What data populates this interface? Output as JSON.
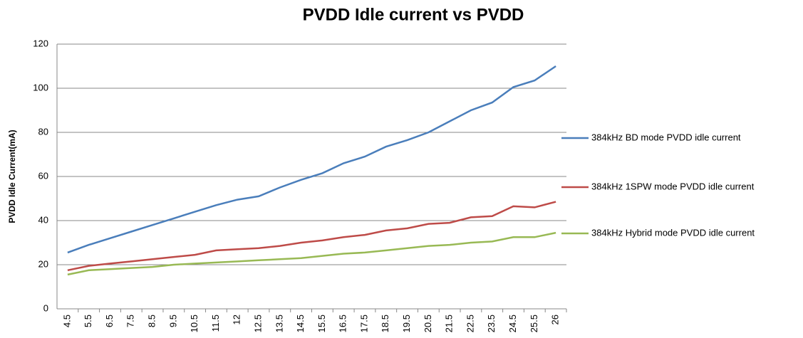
{
  "chart_data": {
    "type": "line",
    "title": "PVDD Idle current vs PVDD",
    "y_label": "PVDD Idle Current(mA)",
    "categories": [
      "4.5",
      "5.5",
      "6.5",
      "7.5",
      "8.5",
      "9.5",
      "10.5",
      "11.5",
      "12",
      "12.5",
      "13.5",
      "14.5",
      "15.5",
      "16.5",
      "17.5",
      "18.5",
      "19.5",
      "20.5",
      "21.5",
      "22.5",
      "23.5",
      "24.5",
      "25.5",
      "26"
    ],
    "series": [
      {
        "name": "384kHz BD mode PVDD idle current",
        "color": "#4a7ebb",
        "values": [
          25.5,
          29,
          32,
          35,
          38,
          41,
          44,
          47,
          49.5,
          51,
          55,
          58.5,
          61.5,
          66,
          69,
          73.5,
          76.5,
          80,
          85,
          90,
          93.5,
          100.5,
          103.5,
          110
        ]
      },
      {
        "name": "384kHz 1SPW mode PVDD idle current",
        "color": "#be4b48",
        "values": [
          17.5,
          19.5,
          20.5,
          21.5,
          22.5,
          23.5,
          24.5,
          26.5,
          27,
          27.5,
          28.5,
          30,
          31,
          32.5,
          33.5,
          35.5,
          36.5,
          38.5,
          39,
          41.5,
          42,
          46.5,
          46,
          48.5
        ]
      },
      {
        "name": "384kHz Hybrid mode PVDD idle current",
        "color": "#98b954",
        "values": [
          15.5,
          17.5,
          18,
          18.5,
          19,
          20,
          20.5,
          21,
          21.5,
          22,
          22.5,
          23,
          24,
          25,
          25.5,
          26.5,
          27.5,
          28.5,
          29,
          30,
          30.5,
          32.5,
          32.5,
          34.5
        ]
      }
    ],
    "ylim": [
      0,
      120
    ],
    "yticks": [
      0,
      20,
      40,
      60,
      80,
      100,
      120
    ],
    "grid": true,
    "legend": "right"
  }
}
